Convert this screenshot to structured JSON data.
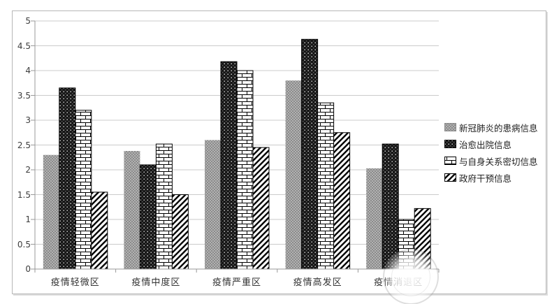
{
  "chart_data": {
    "type": "bar",
    "title": "",
    "xlabel": "",
    "ylabel": "",
    "categories": [
      "疫情轻微区",
      "疫情中度区",
      "疫情严重区",
      "疫情高发区",
      "疫情消退区"
    ],
    "series": [
      {
        "name": "新冠肺炎的患病信息",
        "pattern": "gray-checker",
        "values": [
          2.3,
          2.38,
          2.6,
          3.8,
          2.03
        ]
      },
      {
        "name": "治愈出院信息",
        "pattern": "black-dots",
        "values": [
          3.65,
          2.1,
          4.18,
          4.63,
          2.52
        ]
      },
      {
        "name": "与自身关系密切信息",
        "pattern": "brick",
        "values": [
          3.2,
          2.52,
          4.0,
          3.35,
          1.0
        ]
      },
      {
        "name": "政府干预信息",
        "pattern": "diagonal-stripes",
        "values": [
          1.55,
          1.5,
          2.45,
          2.75,
          1.22
        ]
      }
    ],
    "ylim": [
      0,
      5
    ],
    "ytick_step": 0.5,
    "yticks": [
      "0",
      "0.5",
      "1",
      "1.5",
      "2",
      "2.5",
      "3",
      "3.5",
      "4",
      "4.5",
      "5"
    ],
    "grid": true,
    "legend_position": "right"
  },
  "colors": {
    "gridline": "#cbcbcb",
    "axis": "#999999",
    "tick_text": "#3c3c3c",
    "frame_border": "#b7b7b7",
    "bar_black": "#171717",
    "bar_gray": "#9e9e9e",
    "pattern_ink": "#000000"
  }
}
